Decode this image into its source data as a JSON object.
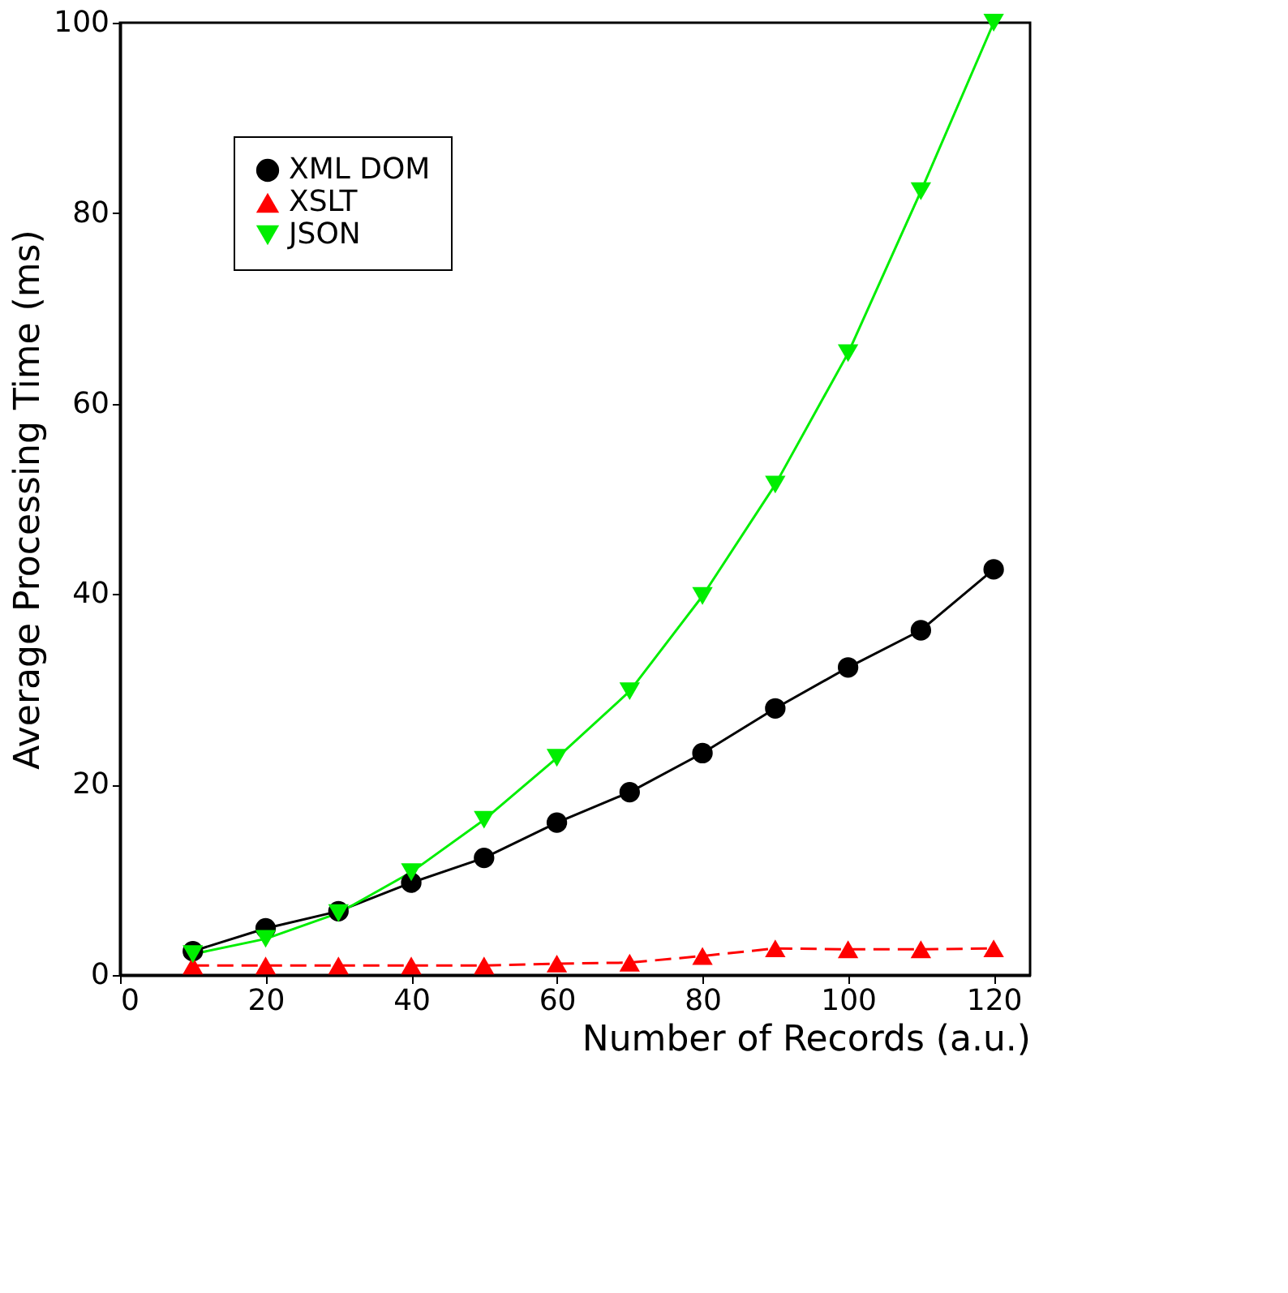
{
  "chart_data": {
    "type": "line",
    "xlabel": "Number of Records (a.u.)",
    "ylabel": "Average Processing Time (ms)",
    "x": [
      10,
      20,
      30,
      40,
      50,
      60,
      70,
      80,
      90,
      100,
      110,
      120
    ],
    "xlim": [
      0,
      125
    ],
    "xticks": [
      0,
      20,
      40,
      60,
      80,
      100,
      120
    ],
    "ylim": [
      0,
      100
    ],
    "yticks": [
      0,
      20,
      40,
      60,
      80,
      100
    ],
    "grid": false,
    "legend": "top left",
    "series": [
      {
        "name": "XML DOM",
        "color": "#000000",
        "marker": "circle",
        "line_style": "solid",
        "values": [
          2.5,
          4.9,
          6.7,
          9.7,
          12.3,
          16,
          19.2,
          23.3,
          28,
          32.3,
          36.2,
          42.6
        ]
      },
      {
        "name": "XSLT",
        "color": "#ff0000",
        "marker": "triangle",
        "line_style": "dashed",
        "values": [
          1,
          1,
          1,
          1,
          1,
          1.2,
          1.3,
          2,
          2.8,
          2.7,
          2.7,
          2.8
        ]
      },
      {
        "name": "JSON",
        "color": "#00ee00",
        "marker": "triangle-down",
        "line_style": "solid",
        "values": [
          2.2,
          3.8,
          6.5,
          10.8,
          16.3,
          22.8,
          29.8,
          39.8,
          51.5,
          65.3,
          82.3,
          100
        ]
      }
    ]
  }
}
